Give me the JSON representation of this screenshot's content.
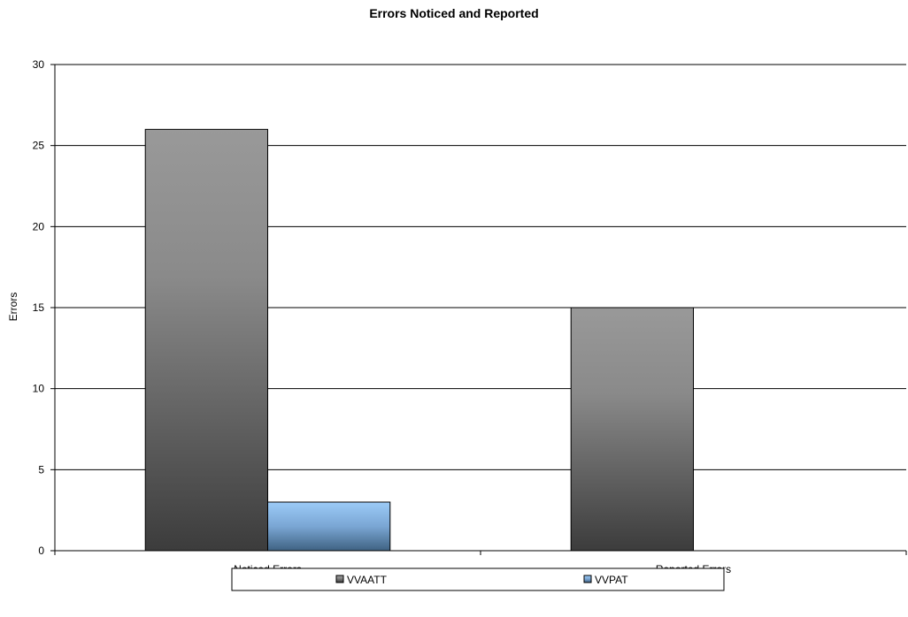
{
  "chart_data": {
    "type": "bar",
    "title": "Errors Noticed and Reported",
    "xlabel": "",
    "ylabel": "Errors",
    "categories": [
      "Noticed Errors",
      "Reported Errors"
    ],
    "series": [
      {
        "name": "VVAATT",
        "values": [
          26,
          15
        ],
        "color": "#6e6e6e"
      },
      {
        "name": "VVPAT",
        "values": [
          3,
          0
        ],
        "color": "#8fbfef"
      }
    ],
    "ylim": [
      0,
      30
    ],
    "yticks": [
      0,
      5,
      10,
      15,
      20,
      25,
      30
    ],
    "grid": true,
    "legend_position": "bottom"
  }
}
